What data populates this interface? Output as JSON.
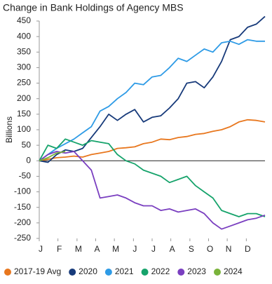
{
  "chart_data": {
    "type": "line",
    "title": "Change in Bank Holdings of Agency MBS",
    "y_label": "Billions",
    "x": [
      0,
      2,
      4,
      6,
      8,
      10,
      12,
      14,
      16,
      18,
      20,
      22,
      24,
      26,
      28,
      30,
      32,
      34,
      36,
      38,
      40,
      42,
      44,
      46,
      48,
      50,
      52
    ],
    "xlim": [
      0,
      52
    ],
    "xticks": [
      {
        "value": 0,
        "label": "J"
      },
      {
        "value": 4.3,
        "label": "F"
      },
      {
        "value": 8.7,
        "label": "M"
      },
      {
        "value": 13,
        "label": "A"
      },
      {
        "value": 17.3,
        "label": "M"
      },
      {
        "value": 21.7,
        "label": "J"
      },
      {
        "value": 26,
        "label": "J"
      },
      {
        "value": 30.3,
        "label": "A"
      },
      {
        "value": 34.7,
        "label": "S"
      },
      {
        "value": 39,
        "label": "O"
      },
      {
        "value": 43.3,
        "label": "N"
      },
      {
        "value": 47.7,
        "label": "D"
      }
    ],
    "ylim": [
      -250,
      450
    ],
    "yticks": [
      -250,
      -200,
      -150,
      -100,
      -50,
      0,
      50,
      100,
      150,
      200,
      250,
      300,
      350,
      400,
      450
    ],
    "grid": false,
    "legend": "bottom",
    "series": [
      {
        "name": "2017-19 Avg",
        "color": "#e8771e",
        "values": [
          0,
          5,
          10,
          12,
          15,
          12,
          20,
          25,
          30,
          40,
          42,
          45,
          55,
          60,
          70,
          68,
          75,
          78,
          85,
          88,
          95,
          100,
          110,
          125,
          132,
          130,
          125
        ]
      },
      {
        "name": "2020",
        "color": "#173a7a",
        "values": [
          0,
          -5,
          20,
          35,
          30,
          40,
          75,
          110,
          150,
          130,
          150,
          165,
          125,
          140,
          145,
          170,
          200,
          250,
          255,
          235,
          270,
          320,
          390,
          400,
          430,
          440,
          465
        ]
      },
      {
        "name": "2021",
        "color": "#2e9be6",
        "values": [
          0,
          20,
          40,
          55,
          70,
          90,
          110,
          160,
          175,
          200,
          220,
          250,
          245,
          270,
          275,
          300,
          330,
          320,
          340,
          360,
          350,
          380,
          385,
          375,
          390,
          385,
          385
        ]
      },
      {
        "name": "2022",
        "color": "#16a36b",
        "values": [
          0,
          50,
          40,
          70,
          60,
          50,
          65,
          60,
          55,
          20,
          0,
          -10,
          -30,
          -40,
          -50,
          -70,
          -60,
          -50,
          -80,
          -100,
          -120,
          -160,
          -170,
          -180,
          -170,
          -170,
          -180
        ]
      },
      {
        "name": "2023",
        "color": "#7a3fc0",
        "values": [
          0,
          20,
          30,
          25,
          30,
          0,
          -30,
          -120,
          -115,
          -110,
          -120,
          -135,
          -145,
          -145,
          -160,
          -155,
          -165,
          -160,
          -155,
          -170,
          -200,
          -220,
          -210,
          -200,
          -190,
          -185,
          -175
        ]
      },
      {
        "name": "2024",
        "color": "#7ab33a",
        "values": [
          0,
          10,
          25,
          30,
          null,
          null,
          null,
          null,
          null,
          null,
          null,
          null,
          null,
          null,
          null,
          null,
          null,
          null,
          null,
          null,
          null,
          null,
          null,
          null,
          null,
          null,
          null
        ]
      }
    ]
  }
}
